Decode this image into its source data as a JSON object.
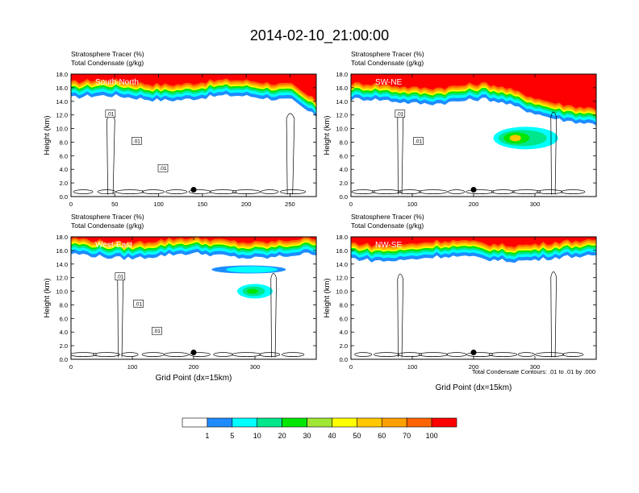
{
  "figure": {
    "title": "2014-02-10_21:00:00",
    "contour_note": "Total Condensate Contours: .01 to .01 by .000"
  },
  "colorbar": {
    "colors": [
      "#ffffff",
      "#1e8cff",
      "#00ffff",
      "#00e68c",
      "#00e600",
      "#a0e632",
      "#ffff00",
      "#ffc800",
      "#ffa000",
      "#ff6400",
      "#ff0000"
    ],
    "labels": [
      "1",
      "5",
      "10",
      "20",
      "30",
      "40",
      "50",
      "60",
      "70",
      "100"
    ]
  },
  "chart_data": [
    {
      "type": "heatmap",
      "subtitle_1": "Stratosphere Tracer   (%)",
      "subtitle_2": "Total Condensate   (g/kg)",
      "panel_label": "South-North",
      "xlabel": "",
      "ylabel": "Height (km)",
      "xlim": [
        0,
        280
      ],
      "ylim": [
        0,
        18
      ],
      "x_ticks": [
        "0",
        "50",
        "100",
        "150",
        "200",
        "250"
      ],
      "y_ticks": [
        "0.0",
        "2.0",
        "4.0",
        "6.0",
        "8.0",
        "10.0",
        "12.0",
        "14.0",
        "16.0",
        "18.0"
      ],
      "marker_x": 140,
      "contour_labels": [
        ".01",
        ".01",
        ".01"
      ],
      "tracer_base_km": 14.5
    },
    {
      "type": "heatmap",
      "subtitle_1": "Stratosphere Tracer   (%)",
      "subtitle_2": "Total Condensate   (g/kg)",
      "panel_label": "SW-NE",
      "xlabel": "",
      "ylabel": "Height (km)",
      "xlim": [
        0,
        400
      ],
      "ylim": [
        0,
        18
      ],
      "x_ticks": [
        "0",
        "100",
        "200",
        "300"
      ],
      "y_ticks": [
        "0.0",
        "2.0",
        "4.0",
        "6.0",
        "8.0",
        "10.0",
        "12.0",
        "14.0",
        "16.0",
        "18.0"
      ],
      "marker_x": 200,
      "contour_labels": [
        ".01",
        ".01"
      ],
      "tracer_base_km": 14.0
    },
    {
      "type": "heatmap",
      "subtitle_1": "Stratosphere Tracer   (%)",
      "subtitle_2": "Total Condensate   (g/kg)",
      "panel_label": "West-East",
      "xlabel": "Grid Point (dx=15km)",
      "ylabel": "Height (km)",
      "xlim": [
        0,
        400
      ],
      "ylim": [
        0,
        18
      ],
      "x_ticks": [
        "0",
        "100",
        "200",
        "300"
      ],
      "y_ticks": [
        "0.0",
        "2.0",
        "4.0",
        "6.0",
        "8.0",
        "10.0",
        "12.0",
        "14.0",
        "16.0",
        "18.0"
      ],
      "marker_x": 200,
      "contour_labels": [
        ".01",
        ".01",
        ".01"
      ],
      "tracer_base_km": 15.2
    },
    {
      "type": "heatmap",
      "subtitle_1": "Stratosphere Tracer   (%)",
      "subtitle_2": "Total Condensate   (g/kg)",
      "panel_label": "NW-SE",
      "xlabel": "Grid Point (dx=15km)",
      "ylabel": "Height (km)",
      "xlim": [
        0,
        400
      ],
      "ylim": [
        0,
        18
      ],
      "x_ticks": [
        "0",
        "100",
        "200",
        "300"
      ],
      "y_ticks": [
        "0.0",
        "2.0",
        "4.0",
        "6.0",
        "8.0",
        "10.0",
        "12.0",
        "14.0",
        "16.0",
        "18.0"
      ],
      "marker_x": 200,
      "contour_labels": [],
      "tracer_base_km": 14.8
    }
  ]
}
